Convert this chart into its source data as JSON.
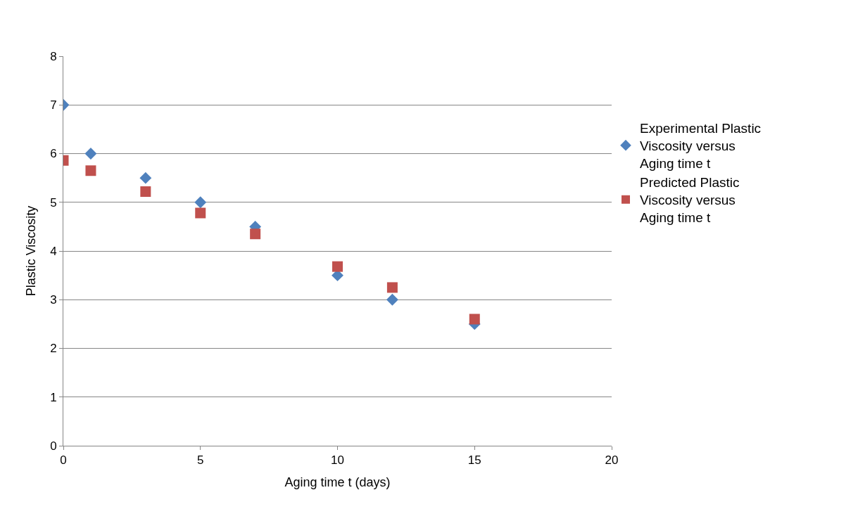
{
  "chart_data": {
    "type": "scatter",
    "xlabel": "Aging time t (days)",
    "ylabel": "Plastic Viscosity",
    "xlim": [
      0,
      20
    ],
    "xticks": [
      0,
      5,
      10,
      15,
      20
    ],
    "ylim": [
      0,
      8
    ],
    "yticks": [
      0,
      1,
      2,
      3,
      4,
      5,
      6,
      7,
      8
    ],
    "grid": "y",
    "legend": "right",
    "series": [
      {
        "name": "Experimental Plastic Viscosity versus Aging time t",
        "color": "#4f81bd",
        "marker": "diamond",
        "x": [
          0,
          1,
          3,
          5,
          7,
          10,
          12,
          15
        ],
        "values": [
          7,
          6,
          5.5,
          5,
          4.5,
          3.5,
          3,
          2.5
        ]
      },
      {
        "name": "Predicted Plastic Viscosity versus Aging time t",
        "color": "#c0504d",
        "marker": "square",
        "x": [
          0,
          1,
          3,
          5,
          7,
          10,
          12,
          15
        ],
        "values": [
          5.86,
          5.65,
          5.22,
          4.78,
          4.35,
          3.68,
          3.25,
          2.6
        ]
      }
    ]
  }
}
